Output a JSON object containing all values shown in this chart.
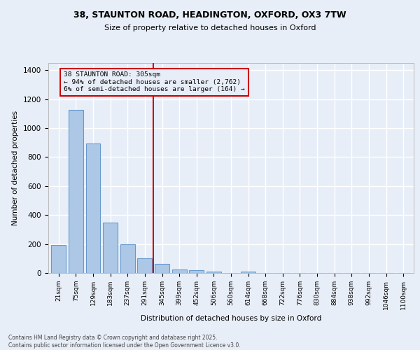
{
  "title_line1": "38, STAUNTON ROAD, HEADINGTON, OXFORD, OX3 7TW",
  "title_line2": "Size of property relative to detached houses in Oxford",
  "xlabel": "Distribution of detached houses by size in Oxford",
  "ylabel": "Number of detached properties",
  "categories": [
    "21sqm",
    "75sqm",
    "129sqm",
    "183sqm",
    "237sqm",
    "291sqm",
    "345sqm",
    "399sqm",
    "452sqm",
    "506sqm",
    "560sqm",
    "614sqm",
    "668sqm",
    "722sqm",
    "776sqm",
    "830sqm",
    "884sqm",
    "938sqm",
    "992sqm",
    "1046sqm",
    "1100sqm"
  ],
  "values": [
    193,
    1125,
    893,
    350,
    197,
    100,
    62,
    24,
    18,
    11,
    0,
    10,
    0,
    0,
    0,
    0,
    0,
    0,
    0,
    0,
    0
  ],
  "bar_color": "#adc8e6",
  "bar_edge_color": "#6699cc",
  "bg_color": "#e8eef8",
  "grid_color": "#ffffff",
  "property_line_x": 5.5,
  "annotation_text": "38 STAUNTON ROAD: 305sqm\n← 94% of detached houses are smaller (2,762)\n6% of semi-detached houses are larger (164) →",
  "annotation_box_color": "#cc0000",
  "footer_line1": "Contains HM Land Registry data © Crown copyright and database right 2025.",
  "footer_line2": "Contains public sector information licensed under the Open Government Licence v3.0.",
  "ylim": [
    0,
    1450
  ],
  "yticks": [
    0,
    200,
    400,
    600,
    800,
    1000,
    1200,
    1400
  ]
}
